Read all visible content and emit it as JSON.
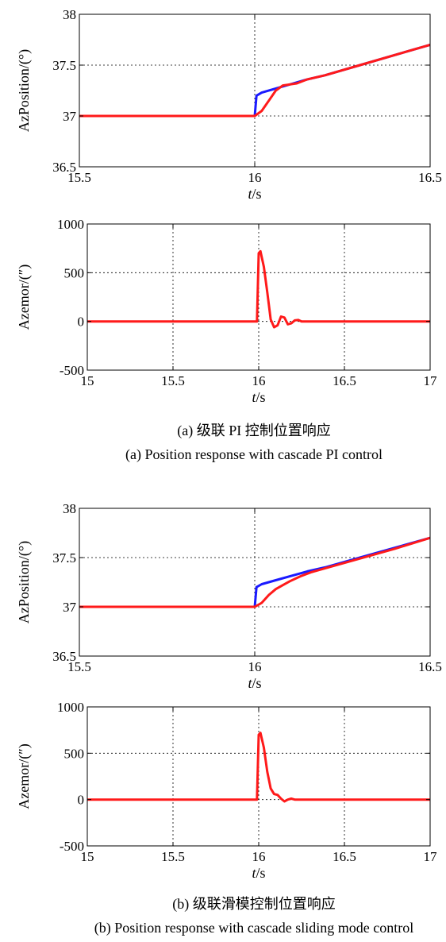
{
  "chart_data": [
    {
      "type": "line",
      "ylabel": "AzPosition/(°)",
      "xlabel_italic": "t",
      "xlabel_unit": "/s",
      "xlim": [
        15.5,
        16.5
      ],
      "ylim": [
        36.5,
        38
      ],
      "xticks": [
        15.5,
        16,
        16.5
      ],
      "yticks": [
        36.5,
        37,
        37.5,
        38
      ],
      "xtick_labels": [
        "15.5",
        "16",
        "16.5"
      ],
      "ytick_labels": [
        "36.5",
        "37",
        "37.5",
        "38"
      ],
      "grid": true,
      "series": [
        {
          "color": "#1a1aff",
          "x": [
            15.5,
            16.0,
            16.005,
            16.02,
            16.06,
            16.1,
            16.15,
            16.2,
            16.3,
            16.4,
            16.5
          ],
          "y": [
            37.0,
            37.0,
            37.2,
            37.23,
            37.27,
            37.31,
            37.36,
            37.4,
            37.5,
            37.6,
            37.7
          ]
        },
        {
          "color": "#ff1a1a",
          "x": [
            15.5,
            16.0,
            16.02,
            16.04,
            16.06,
            16.08,
            16.1,
            16.12,
            16.15,
            16.2,
            16.3,
            16.4,
            16.5
          ],
          "y": [
            37.0,
            37.0,
            37.05,
            37.15,
            37.25,
            37.3,
            37.31,
            37.32,
            37.36,
            37.4,
            37.5,
            37.6,
            37.7
          ]
        }
      ]
    },
    {
      "type": "line",
      "ylabel": "Azemor/(″)",
      "xlabel_italic": "t",
      "xlabel_unit": "/s",
      "xlim": [
        15,
        17
      ],
      "ylim": [
        -500,
        1000
      ],
      "xticks": [
        15,
        15.5,
        16,
        16.5,
        17
      ],
      "yticks": [
        -500,
        0,
        500,
        1000
      ],
      "xtick_labels": [
        "15",
        "15.5",
        "16",
        "16.5",
        "17"
      ],
      "ytick_labels": [
        "-500",
        "0",
        "500",
        "1000"
      ],
      "grid": true,
      "series": [
        {
          "color": "#ff1a1a",
          "x": [
            15.0,
            15.99,
            16.0,
            16.01,
            16.03,
            16.05,
            16.07,
            16.09,
            16.11,
            16.13,
            16.15,
            16.17,
            16.19,
            16.21,
            16.23,
            16.25,
            17.0
          ],
          "y": [
            0,
            0,
            700,
            720,
            560,
            300,
            20,
            -60,
            -40,
            50,
            40,
            -30,
            -20,
            10,
            15,
            0,
            0
          ]
        }
      ]
    },
    {
      "type": "line",
      "ylabel": "AzPosition/(°)",
      "xlabel_italic": "t",
      "xlabel_unit": "/s",
      "xlim": [
        15.5,
        16.5
      ],
      "ylim": [
        36.5,
        38
      ],
      "xticks": [
        15.5,
        16,
        16.5
      ],
      "yticks": [
        36.5,
        37,
        37.5,
        38
      ],
      "xtick_labels": [
        "15.5",
        "16",
        "16.5"
      ],
      "ytick_labels": [
        "36.5",
        "37",
        "37.5",
        "38"
      ],
      "grid": true,
      "series": [
        {
          "color": "#1a1aff",
          "x": [
            15.5,
            16.0,
            16.005,
            16.02,
            16.06,
            16.1,
            16.15,
            16.2,
            16.3,
            16.4,
            16.5
          ],
          "y": [
            37.0,
            37.0,
            37.2,
            37.23,
            37.27,
            37.31,
            37.36,
            37.4,
            37.5,
            37.6,
            37.7
          ]
        },
        {
          "color": "#ff1a1a",
          "x": [
            15.5,
            16.0,
            16.02,
            16.04,
            16.06,
            16.08,
            16.1,
            16.13,
            16.16,
            16.2,
            16.3,
            16.4,
            16.5
          ],
          "y": [
            37.0,
            37.0,
            37.04,
            37.12,
            37.18,
            37.22,
            37.26,
            37.31,
            37.35,
            37.39,
            37.49,
            37.59,
            37.7
          ]
        }
      ]
    },
    {
      "type": "line",
      "ylabel": "Azemor/(″)",
      "xlabel_italic": "t",
      "xlabel_unit": "/s",
      "xlim": [
        15,
        17
      ],
      "ylim": [
        -500,
        1000
      ],
      "xticks": [
        15,
        15.5,
        16,
        16.5,
        17
      ],
      "yticks": [
        -500,
        0,
        500,
        1000
      ],
      "xtick_labels": [
        "15",
        "15.5",
        "16",
        "16.5",
        "17"
      ],
      "ytick_labels": [
        "-500",
        "0",
        "500",
        "1000"
      ],
      "grid": true,
      "series": [
        {
          "color": "#ff1a1a",
          "x": [
            15.0,
            15.99,
            16.0,
            16.01,
            16.03,
            16.05,
            16.07,
            16.09,
            16.11,
            16.13,
            16.15,
            16.17,
            16.19,
            16.21,
            17.0
          ],
          "y": [
            0,
            0,
            700,
            720,
            560,
            300,
            120,
            60,
            50,
            10,
            -20,
            0,
            10,
            0,
            0
          ]
        }
      ]
    }
  ],
  "captions": {
    "a_cn": "(a) 级联 PI 控制位置响应",
    "a_en": "(a) Position response with cascade PI control",
    "b_cn": "(b) 级联滑模控制位置响应",
    "b_en": "(b) Position response with cascade sliding mode control"
  }
}
